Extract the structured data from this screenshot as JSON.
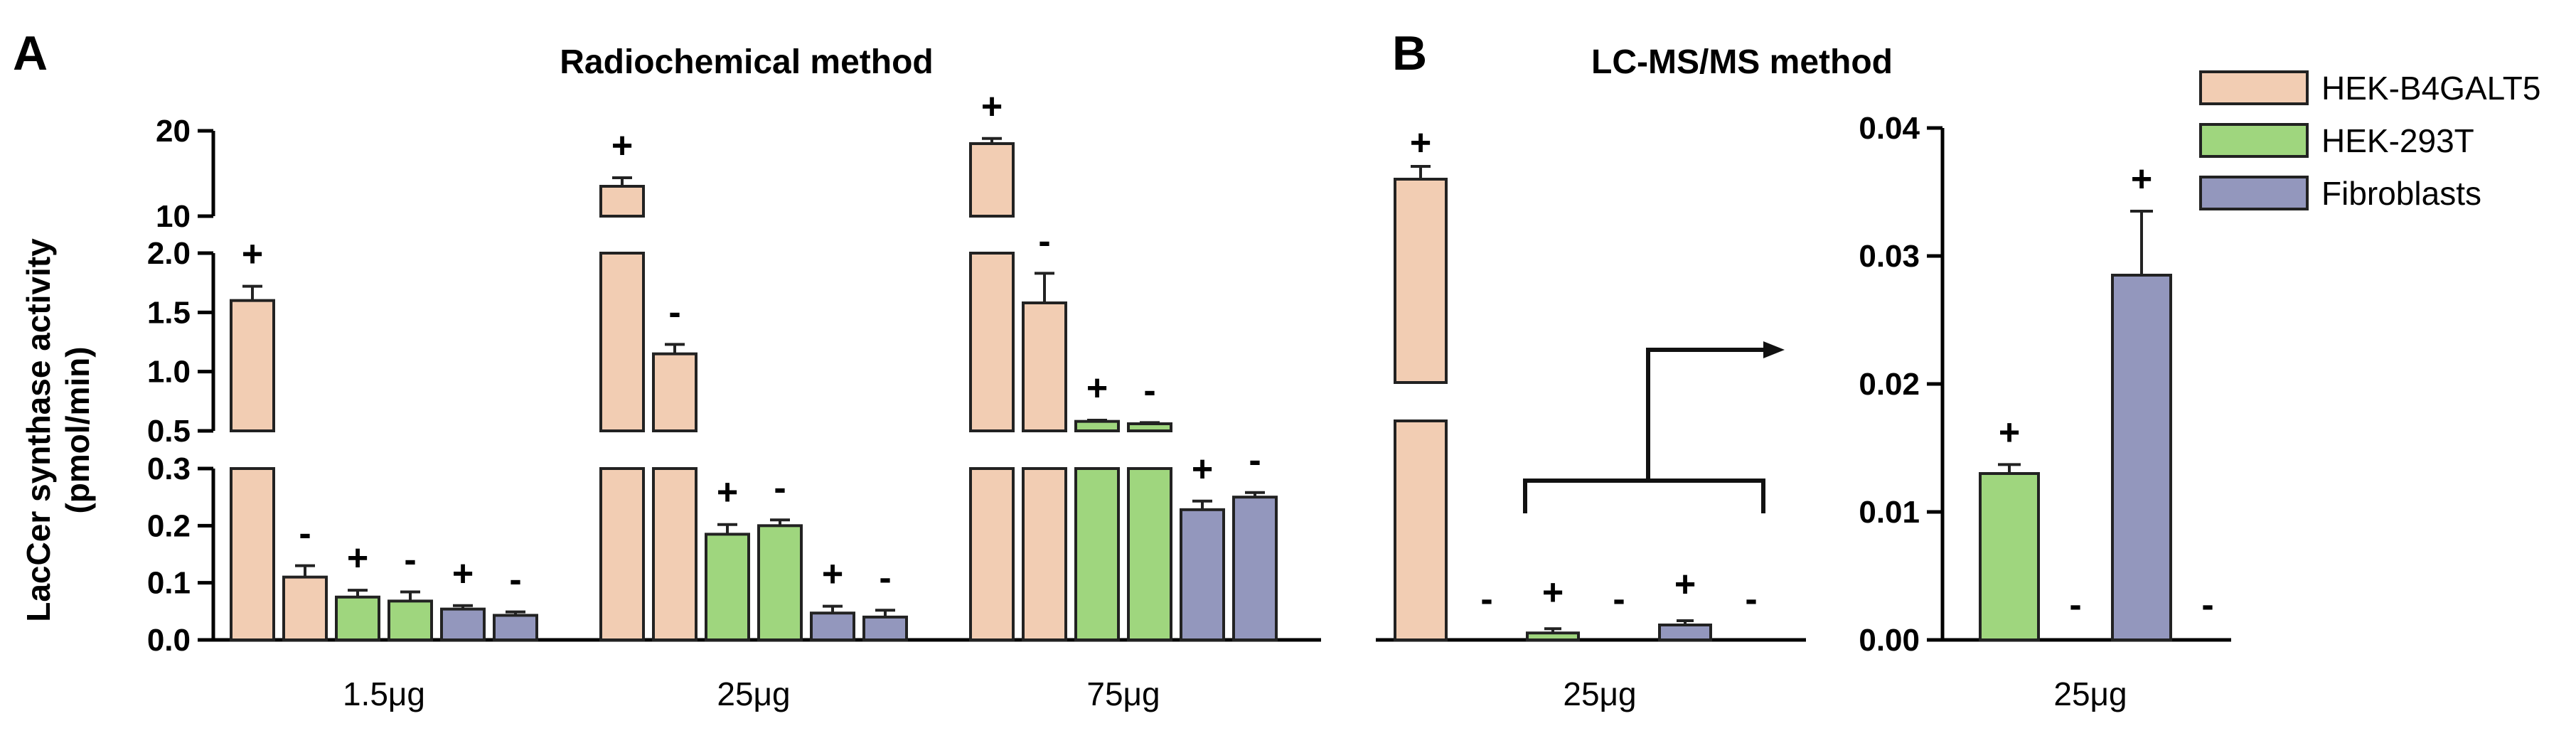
{
  "colors": {
    "hek_b4galt5": "#f2cdb3",
    "hek_293t": "#9fd67e",
    "fibroblasts": "#9397bd",
    "stroke": "#222222"
  },
  "panel_labels": {
    "a": "A",
    "b": "B"
  },
  "legend": [
    {
      "name": "HEK-B4GALT5",
      "color": "#f2cdb3"
    },
    {
      "name": "HEK-293T",
      "color": "#9fd67e"
    },
    {
      "name": "Fibroblasts",
      "color": "#9397bd"
    }
  ],
  "chart_data": [
    {
      "id": "A",
      "type": "bar",
      "title": "Radiochemical method",
      "ylabel": "LacCer synthase activity (pmol/min)",
      "ylabel_lines": [
        "LacCer synthase activity",
        "(pmol/min)"
      ],
      "broken_y_axis": [
        {
          "range": [
            0,
            0.3
          ],
          "ticks": [
            "0.0",
            "0.1",
            "0.2",
            "0.3"
          ],
          "tick_values": [
            0,
            0.1,
            0.2,
            0.3
          ]
        },
        {
          "range": [
            0.5,
            2.0
          ],
          "ticks": [
            "0.5",
            "1.0",
            "1.5",
            "2.0"
          ],
          "tick_values": [
            0.5,
            1.0,
            1.5,
            2.0
          ]
        },
        {
          "range": [
            10,
            20
          ],
          "ticks": [
            "10",
            "20"
          ],
          "tick_values": [
            10,
            20
          ]
        }
      ],
      "categories": [
        "1.5μg",
        "25μg",
        "75μg"
      ],
      "bars": [
        {
          "group": 0,
          "series": "HEK-B4GALT5",
          "value": 1.6,
          "error": 0.12,
          "label": "+"
        },
        {
          "group": 0,
          "series": "HEK-B4GALT5",
          "value": 0.11,
          "error": 0.02,
          "label": "-"
        },
        {
          "group": 0,
          "series": "HEK-293T",
          "value": 0.075,
          "error": 0.012,
          "label": "+"
        },
        {
          "group": 0,
          "series": "HEK-293T",
          "value": 0.068,
          "error": 0.016,
          "label": "-"
        },
        {
          "group": 0,
          "series": "Fibroblasts",
          "value": 0.054,
          "error": 0.006,
          "label": "+"
        },
        {
          "group": 0,
          "series": "Fibroblasts",
          "value": 0.043,
          "error": 0.006,
          "label": "-"
        },
        {
          "group": 1,
          "series": "HEK-B4GALT5",
          "value": 13.5,
          "error": 1.0,
          "label": "+"
        },
        {
          "group": 1,
          "series": "HEK-B4GALT5",
          "value": 1.15,
          "error": 0.08,
          "label": "-"
        },
        {
          "group": 1,
          "series": "HEK-293T",
          "value": 0.185,
          "error": 0.017,
          "label": "+"
        },
        {
          "group": 1,
          "series": "HEK-293T",
          "value": 0.2,
          "error": 0.01,
          "label": "-"
        },
        {
          "group": 1,
          "series": "Fibroblasts",
          "value": 0.047,
          "error": 0.012,
          "label": "+"
        },
        {
          "group": 1,
          "series": "Fibroblasts",
          "value": 0.04,
          "error": 0.012,
          "label": "-"
        },
        {
          "group": 2,
          "series": "HEK-B4GALT5",
          "value": 18.5,
          "error": 0.6,
          "label": "+"
        },
        {
          "group": 2,
          "series": "HEK-B4GALT5",
          "value": 1.58,
          "error": 0.25,
          "label": "-"
        },
        {
          "group": 2,
          "series": "HEK-293T",
          "value": 0.58,
          "error": 0.01,
          "label": "+"
        },
        {
          "group": 2,
          "series": "HEK-293T",
          "value": 0.56,
          "error": 0.01,
          "label": "-"
        },
        {
          "group": 2,
          "series": "Fibroblasts",
          "value": 0.228,
          "error": 0.015,
          "label": "+"
        },
        {
          "group": 2,
          "series": "Fibroblasts",
          "value": 0.25,
          "error": 0.008,
          "label": "-"
        }
      ]
    },
    {
      "id": "B",
      "type": "bar",
      "title": "LC-MS/MS method",
      "categories": [
        "25μg"
      ],
      "bars": [
        {
          "series": "HEK-B4GALT5",
          "value": 18.0,
          "error": 0.5,
          "label": "+"
        },
        {
          "series": "HEK-B4GALT5",
          "value": 0.0,
          "error": 0.0,
          "label": "-"
        },
        {
          "series": "HEK-293T",
          "value": 0.013,
          "error": 0.0007,
          "label": "+"
        },
        {
          "series": "HEK-293T",
          "value": 0.0,
          "error": 0.0,
          "label": "-"
        },
        {
          "series": "Fibroblasts",
          "value": 0.028,
          "error": 0.005,
          "label": "+"
        },
        {
          "series": "Fibroblasts",
          "value": 0.0,
          "error": 0.0,
          "label": "-"
        }
      ]
    },
    {
      "id": "B-inset",
      "type": "bar",
      "title": "",
      "categories": [
        "25μg"
      ],
      "ylim": [
        0,
        0.04
      ],
      "yticks": [
        "0.00",
        "0.01",
        "0.02",
        "0.03",
        "0.04"
      ],
      "ytick_values": [
        0,
        0.01,
        0.02,
        0.03,
        0.04
      ],
      "bars": [
        {
          "series": "HEK-293T",
          "value": 0.013,
          "error": 0.0007,
          "label": "+"
        },
        {
          "series": "HEK-293T",
          "value": 0.0,
          "error": 0.0,
          "label": "-"
        },
        {
          "series": "Fibroblasts",
          "value": 0.0285,
          "error": 0.005,
          "label": "+"
        },
        {
          "series": "Fibroblasts",
          "value": 0.0,
          "error": 0.0,
          "label": "-"
        }
      ]
    }
  ]
}
